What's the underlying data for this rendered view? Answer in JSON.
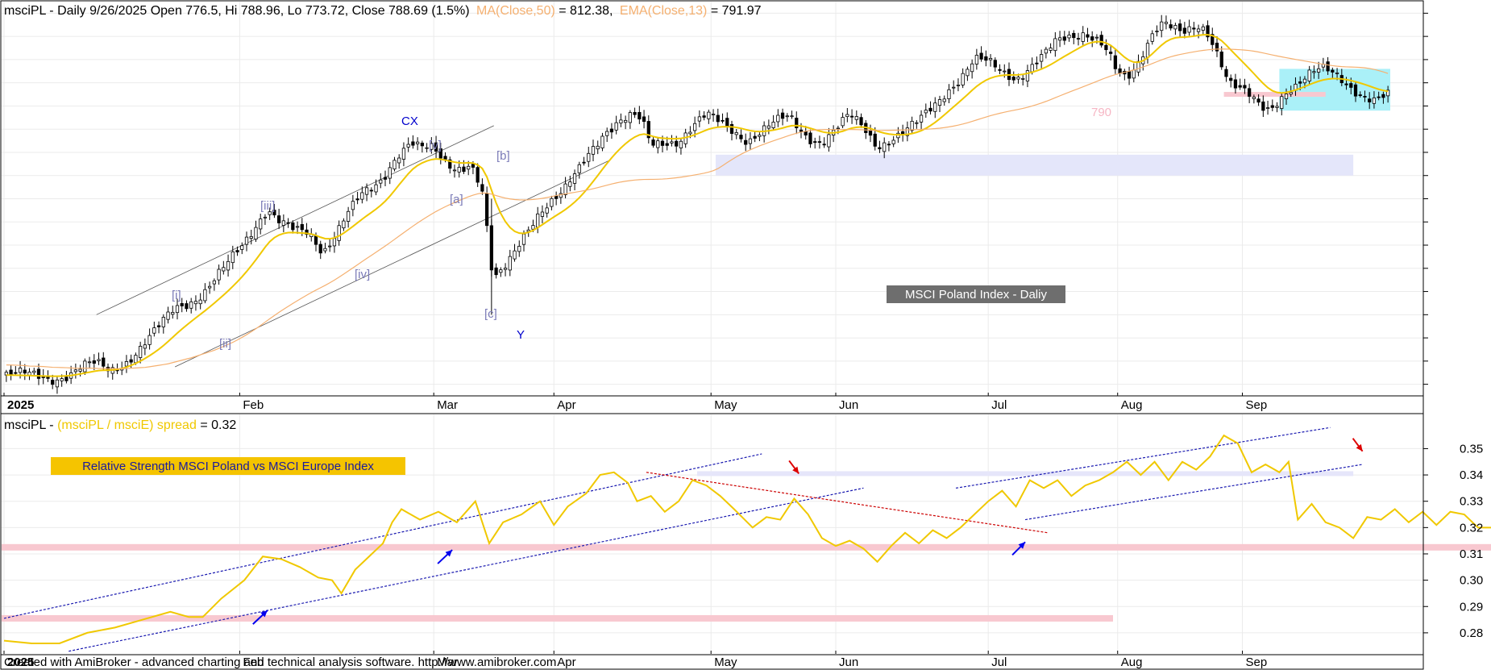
{
  "price_panel": {
    "header": {
      "symbol_prefix": "msciPL - Daily 9/26/2025 Open 776.5, Hi 788.96, Lo 773.72, Close 788.69 (1.5%)",
      "ma_label": "MA(Close,50)",
      "ma_value": " = 812.38,",
      "ema_label": "EMA(Close,13)",
      "ema_value": " = 791.97"
    },
    "title_box": "MSCI Poland Index - Daliy",
    "level_label": "790",
    "wave_labels": {
      "cx": "CX",
      "v": "[v]",
      "b": "[b]",
      "iii": "[iii]",
      "a": "[a]",
      "i": "[i]",
      "iv": "[iv]",
      "c": "[c]",
      "y": "Y",
      "ii": "[ii]"
    }
  },
  "rs_panel": {
    "header_prefix": "msciPL - ",
    "header_series": "(msciPL / msciE) spread",
    "header_value": " = 0.32",
    "title_box": "Relative Strength MSCI Poland vs MSCI Europe Index"
  },
  "x_axis": {
    "year_label": "2025",
    "months": [
      "Feb",
      "Mar",
      "Apr",
      "May",
      "Jun",
      "Jul",
      "Aug",
      "Sep"
    ]
  },
  "footer": "Created with AmiBroker - advanced charting and technical analysis software. http://www.amibroker.com",
  "colors": {
    "ema": "#f0c800",
    "ma": "#f5b070",
    "rs_line": "#f0c800",
    "support_zone": "#e4e6fa",
    "consolidation_box": "#aaf0f8",
    "pink_level": "#f8c8d0",
    "wave_label": "#7b7bb8",
    "cx_y_label": "#0000cc",
    "blue_arrow": "#0000ee",
    "red_arrow": "#dd0000"
  },
  "chart_data": [
    {
      "type": "candlestick",
      "title": "MSCI Poland Index - Daliy",
      "ylim": [
        530,
        870
      ],
      "y_ticks": [
        540,
        560,
        580,
        600,
        620,
        640,
        660,
        680,
        700,
        720,
        740,
        760,
        780,
        800,
        820,
        840,
        860
      ],
      "x_ticks": [
        "2025",
        "Feb",
        "Mar",
        "Apr",
        "May",
        "Jun",
        "Jul",
        "Aug",
        "Sep"
      ],
      "last_bar": {
        "date": "9/26/2025",
        "open": 776.5,
        "high": 788.96,
        "low": 773.72,
        "close": 788.69,
        "change_pct": 1.5
      },
      "indicators": [
        {
          "name": "MA(Close,50)",
          "value": 812.38
        },
        {
          "name": "EMA(Close,13)",
          "value": 791.97
        }
      ],
      "key_levels": {
        "support_zone": [
          720,
          738
        ],
        "consolidation_box": [
          776,
          812
        ],
        "pink_level": 790
      },
      "close_path": [
        [
          0,
          548
        ],
        [
          5,
          547
        ],
        [
          10,
          546
        ],
        [
          14,
          549
        ],
        [
          17,
          554
        ],
        [
          20,
          556
        ],
        [
          23,
          552
        ],
        [
          26,
          560
        ],
        [
          29,
          570
        ],
        [
          33,
          585
        ],
        [
          37,
          605
        ],
        [
          40,
          612
        ],
        [
          43,
          620
        ],
        [
          45,
          628
        ],
        [
          48,
          640
        ],
        [
          51,
          655
        ],
        [
          53,
          668
        ],
        [
          55,
          682
        ],
        [
          57,
          694
        ],
        [
          60,
          680
        ],
        [
          63,
          670
        ],
        [
          66,
          668
        ],
        [
          69,
          655
        ],
        [
          71,
          668
        ],
        [
          74,
          688
        ],
        [
          77,
          700
        ],
        [
          80,
          706
        ],
        [
          82,
          716
        ],
        [
          85,
          740
        ],
        [
          88,
          752
        ],
        [
          90,
          745
        ],
        [
          93,
          740
        ],
        [
          95,
          730
        ],
        [
          97,
          726
        ],
        [
          99,
          728
        ],
        [
          101,
          734
        ],
        [
          103,
          715
        ],
        [
          104,
          700
        ],
        [
          105,
          650
        ],
        [
          106,
          628
        ],
        [
          108,
          635
        ],
        [
          110,
          648
        ],
        [
          112,
          665
        ],
        [
          114,
          680
        ],
        [
          116,
          692
        ],
        [
          118,
          698
        ],
        [
          121,
          704
        ],
        [
          124,
          720
        ],
        [
          127,
          742
        ],
        [
          130,
          760
        ],
        [
          133,
          768
        ],
        [
          136,
          770
        ],
        [
          138,
          765
        ],
        [
          140,
          745
        ],
        [
          143,
          750
        ],
        [
          146,
          752
        ],
        [
          149,
          762
        ],
        [
          152,
          770
        ],
        [
          155,
          765
        ],
        [
          158,
          760
        ],
        [
          161,
          752
        ],
        [
          164,
          758
        ],
        [
          167,
          764
        ],
        [
          170,
          770
        ],
        [
          172,
          762
        ],
        [
          174,
          755
        ],
        [
          177,
          750
        ],
        [
          180,
          758
        ],
        [
          183,
          770
        ],
        [
          186,
          762
        ],
        [
          189,
          748
        ],
        [
          192,
          752
        ],
        [
          195,
          756
        ],
        [
          198,
          765
        ],
        [
          201,
          780
        ],
        [
          204,
          795
        ],
        [
          207,
          805
        ],
        [
          210,
          818
        ],
        [
          213,
          816
        ],
        [
          216,
          810
        ],
        [
          219,
          806
        ],
        [
          222,
          814
        ],
        [
          225,
          822
        ],
        [
          228,
          834
        ],
        [
          231,
          840
        ],
        [
          234,
          846
        ],
        [
          237,
          838
        ],
        [
          239,
          825
        ],
        [
          241,
          805
        ],
        [
          243,
          800
        ],
        [
          245,
          812
        ],
        [
          247,
          832
        ],
        [
          249,
          850
        ],
        [
          251,
          856
        ],
        [
          253,
          848
        ],
        [
          255,
          840
        ],
        [
          257,
          842
        ],
        [
          259,
          846
        ],
        [
          261,
          840
        ],
        [
          263,
          825
        ],
        [
          265,
          805
        ],
        [
          267,
          798
        ],
        [
          269,
          790
        ],
        [
          272,
          775
        ],
        [
          274,
          774
        ],
        [
          276,
          786
        ],
        [
          278,
          797
        ],
        [
          280,
          802
        ],
        [
          282,
          808
        ],
        [
          285,
          810
        ],
        [
          288,
          805
        ],
        [
          291,
          798
        ],
        [
          294,
          792
        ],
        [
          297,
          786
        ],
        [
          299,
          788
        ]
      ]
    },
    {
      "type": "line",
      "series_label": "(msciPL / msciE) spread",
      "last_value": 0.32,
      "ylim": [
        0.272,
        0.363
      ],
      "y_ticks": [
        0.28,
        0.29,
        0.3,
        0.31,
        0.32,
        0.33,
        0.34,
        0.35
      ],
      "x_ticks": [
        "2025",
        "Feb",
        "Mar",
        "Apr",
        "May",
        "Jun",
        "Jul",
        "Aug",
        "Sep"
      ],
      "key_levels": {
        "upper_band": 0.3405,
        "lower_band_1": 0.3125,
        "lower_band_2": 0.2855
      },
      "values_path": [
        [
          0,
          0.277
        ],
        [
          6,
          0.276
        ],
        [
          12,
          0.276
        ],
        [
          18,
          0.28
        ],
        [
          24,
          0.282
        ],
        [
          30,
          0.285
        ],
        [
          36,
          0.288
        ],
        [
          40,
          0.286
        ],
        [
          43,
          0.286
        ],
        [
          47,
          0.293
        ],
        [
          52,
          0.3
        ],
        [
          56,
          0.309
        ],
        [
          60,
          0.308
        ],
        [
          64,
          0.305
        ],
        [
          68,
          0.301
        ],
        [
          71,
          0.3
        ],
        [
          73,
          0.295
        ],
        [
          76,
          0.304
        ],
        [
          79,
          0.309
        ],
        [
          82,
          0.314
        ],
        [
          84,
          0.322
        ],
        [
          86,
          0.327
        ],
        [
          90,
          0.323
        ],
        [
          94,
          0.326
        ],
        [
          98,
          0.322
        ],
        [
          102,
          0.33
        ],
        [
          105,
          0.314
        ],
        [
          108,
          0.322
        ],
        [
          112,
          0.325
        ],
        [
          116,
          0.33
        ],
        [
          119,
          0.321
        ],
        [
          122,
          0.328
        ],
        [
          126,
          0.333
        ],
        [
          129,
          0.34
        ],
        [
          132,
          0.341
        ],
        [
          135,
          0.337
        ],
        [
          137,
          0.33
        ],
        [
          140,
          0.332
        ],
        [
          143,
          0.326
        ],
        [
          146,
          0.33
        ],
        [
          149,
          0.338
        ],
        [
          152,
          0.336
        ],
        [
          155,
          0.332
        ],
        [
          158,
          0.327
        ],
        [
          162,
          0.32
        ],
        [
          165,
          0.324
        ],
        [
          168,
          0.323
        ],
        [
          171,
          0.331
        ],
        [
          174,
          0.325
        ],
        [
          177,
          0.316
        ],
        [
          180,
          0.313
        ],
        [
          183,
          0.315
        ],
        [
          186,
          0.312
        ],
        [
          189,
          0.307
        ],
        [
          192,
          0.313
        ],
        [
          195,
          0.318
        ],
        [
          198,
          0.314
        ],
        [
          201,
          0.319
        ],
        [
          204,
          0.316
        ],
        [
          207,
          0.32
        ],
        [
          210,
          0.325
        ],
        [
          213,
          0.33
        ],
        [
          216,
          0.334
        ],
        [
          219,
          0.328
        ],
        [
          222,
          0.338
        ],
        [
          225,
          0.335
        ],
        [
          228,
          0.338
        ],
        [
          231,
          0.332
        ],
        [
          234,
          0.336
        ],
        [
          237,
          0.338
        ],
        [
          240,
          0.341
        ],
        [
          243,
          0.345
        ],
        [
          246,
          0.34
        ],
        [
          249,
          0.345
        ],
        [
          252,
          0.338
        ],
        [
          255,
          0.345
        ],
        [
          258,
          0.342
        ],
        [
          261,
          0.347
        ],
        [
          264,
          0.355
        ],
        [
          267,
          0.352
        ],
        [
          270,
          0.341
        ],
        [
          273,
          0.344
        ],
        [
          276,
          0.341
        ],
        [
          278,
          0.345
        ],
        [
          280,
          0.323
        ],
        [
          283,
          0.329
        ],
        [
          286,
          0.322
        ],
        [
          289,
          0.32
        ],
        [
          292,
          0.316
        ],
        [
          295,
          0.324
        ],
        [
          298,
          0.323
        ],
        [
          301,
          0.327
        ],
        [
          304,
          0.322
        ],
        [
          307,
          0.326
        ],
        [
          310,
          0.321
        ],
        [
          313,
          0.326
        ],
        [
          316,
          0.325
        ],
        [
          319,
          0.32
        ],
        [
          322,
          0.32
        ],
        [
          325,
          0.322
        ],
        [
          328,
          0.319
        ],
        [
          331,
          0.32
        ]
      ]
    }
  ]
}
